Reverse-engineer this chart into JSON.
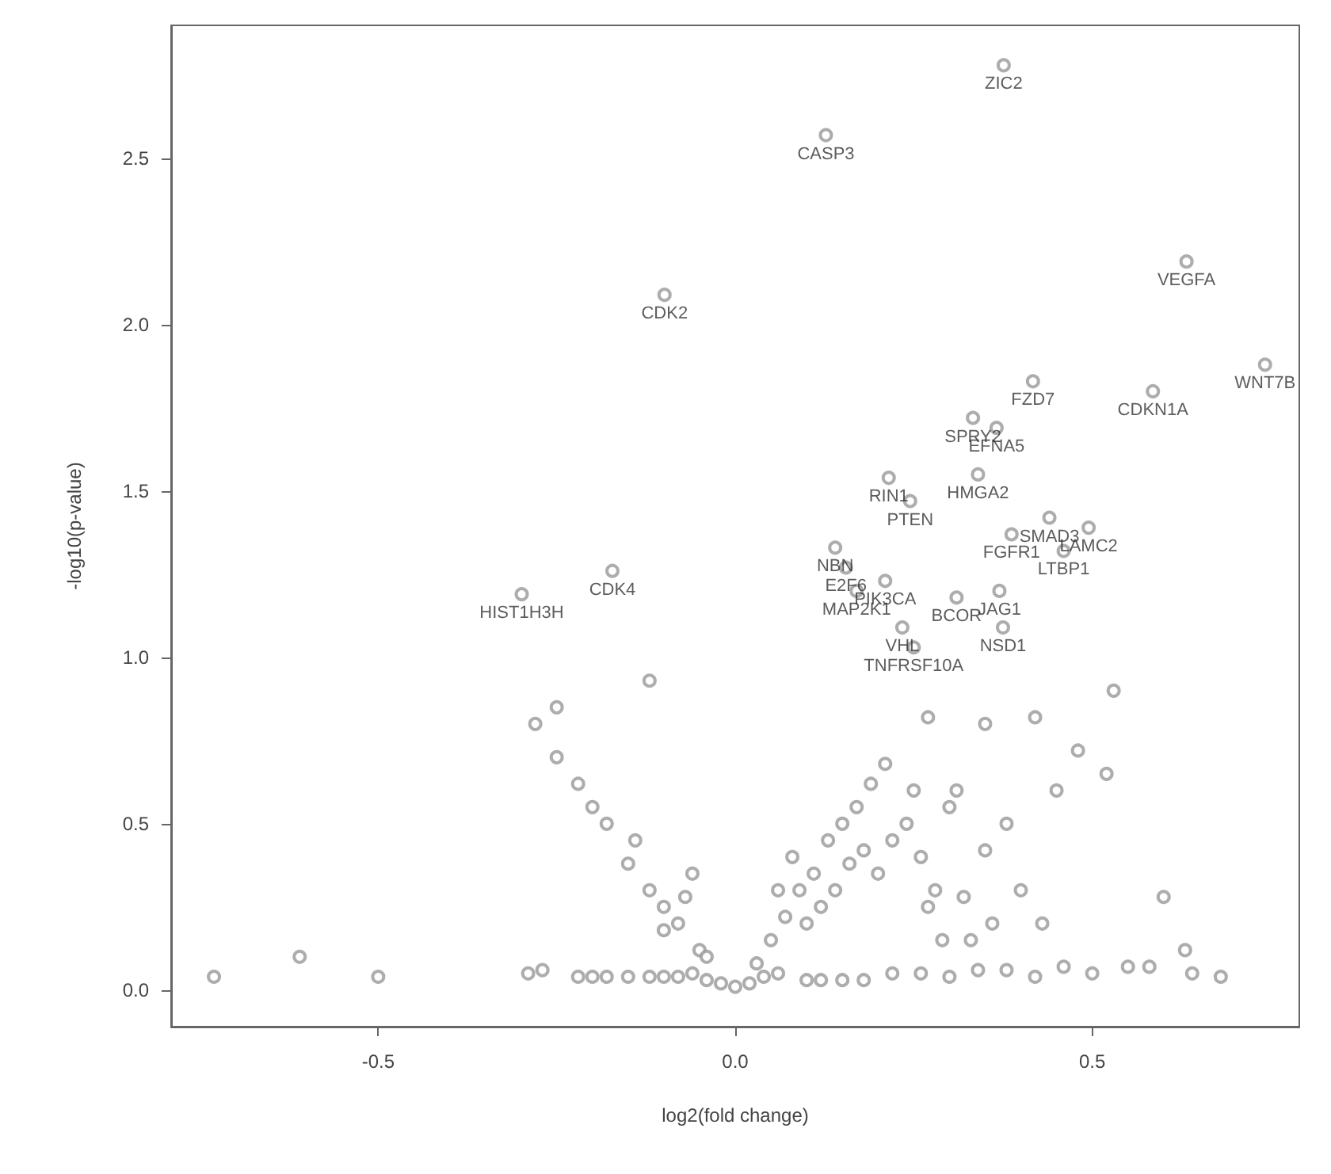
{
  "chart_data": {
    "type": "scatter",
    "xlabel": "log2(fold change)",
    "ylabel": "-log10(p-value)",
    "xlim": [
      -0.79,
      0.79
    ],
    "ylim": [
      -0.11,
      2.9
    ],
    "xticks": [
      {
        "value": -0.5,
        "label": "-0.5"
      },
      {
        "value": 0,
        "label": "0.0"
      },
      {
        "value": 0.5,
        "label": "0.5"
      }
    ],
    "yticks": [
      {
        "value": 0,
        "label": "0.0"
      },
      {
        "value": 0.5,
        "label": "0.5"
      },
      {
        "value": 1,
        "label": "1.0"
      },
      {
        "value": 1.5,
        "label": "1.5"
      },
      {
        "value": 2,
        "label": "2.0"
      },
      {
        "value": 2.5,
        "label": "2.5"
      }
    ],
    "grid": false,
    "marker": "circle",
    "series": [
      {
        "color": "#999999",
        "x": [
          -0.73,
          -0.61,
          -0.5,
          -0.29,
          -0.27,
          -0.22,
          -0.2,
          -0.18,
          -0.15,
          -0.12,
          -0.1,
          -0.08,
          -0.06,
          -0.04,
          -0.02,
          0,
          0.02,
          0.04,
          0.06,
          0.1,
          0.12,
          0.15,
          0.18,
          0.22,
          0.26,
          0.3,
          0.34,
          0.38,
          0.42,
          0.46,
          0.5,
          0.55,
          0.58,
          0.64,
          -0.05,
          -0.08,
          -0.1,
          -0.12,
          -0.15,
          -0.18,
          -0.2,
          -0.22,
          -0.25,
          -0.28,
          -0.14,
          -0.1,
          -0.07,
          -0.04,
          -0.06,
          0.03,
          0.05,
          0.07,
          0.09,
          0.11,
          0.13,
          0.15,
          0.17,
          0.19,
          0.21,
          0.1,
          0.12,
          0.14,
          0.16,
          0.18,
          0.2,
          0.22,
          0.24,
          0.26,
          0.28,
          0.3,
          0.32,
          0.35,
          0.38,
          0.4,
          0.43,
          0.45,
          0.48,
          0.52,
          0.6,
          0.63,
          0.68,
          0.08,
          0.06,
          0.25,
          0.27,
          0.33,
          0.36,
          0.29,
          0.31,
          -0.25,
          -0.12,
          0.27,
          0.35,
          0.42,
          0.53
        ],
        "values": [
          0.04,
          0.1,
          0.04,
          0.05,
          0.06,
          0.04,
          0.04,
          0.04,
          0.04,
          0.04,
          0.04,
          0.04,
          0.05,
          0.03,
          0.02,
          0.01,
          0.02,
          0.04,
          0.05,
          0.03,
          0.03,
          0.03,
          0.03,
          0.05,
          0.05,
          0.04,
          0.06,
          0.06,
          0.04,
          0.07,
          0.05,
          0.07,
          0.07,
          0.05,
          0.12,
          0.2,
          0.25,
          0.3,
          0.38,
          0.5,
          0.55,
          0.62,
          0.7,
          0.8,
          0.45,
          0.18,
          0.28,
          0.1,
          0.35,
          0.08,
          0.15,
          0.22,
          0.3,
          0.35,
          0.45,
          0.5,
          0.55,
          0.62,
          0.68,
          0.2,
          0.25,
          0.3,
          0.38,
          0.42,
          0.35,
          0.45,
          0.5,
          0.4,
          0.3,
          0.55,
          0.28,
          0.42,
          0.5,
          0.3,
          0.2,
          0.6,
          0.72,
          0.65,
          0.28,
          0.12,
          0.04,
          0.4,
          0.3,
          0.6,
          0.25,
          0.15,
          0.2,
          0.15,
          0.6,
          0.85,
          0.93,
          0.82,
          0.8,
          0.82,
          0.9
        ]
      },
      {
        "color": "#999999",
        "x": [
          0.376,
          0.127,
          -0.099,
          0.632,
          0.742,
          0.585,
          0.417,
          0.333,
          0.366,
          0.215,
          0.245,
          0.34,
          0.44,
          0.495,
          0.387,
          0.46,
          0.14,
          0.155,
          0.21,
          -0.172,
          -0.299,
          0.17,
          0.31,
          0.37,
          0.234,
          0.25,
          0.375
        ],
        "values": [
          2.78,
          2.57,
          2.09,
          2.19,
          1.88,
          1.8,
          1.83,
          1.72,
          1.69,
          1.54,
          1.47,
          1.55,
          1.42,
          1.39,
          1.37,
          1.32,
          1.33,
          1.27,
          1.23,
          1.26,
          1.19,
          1.2,
          1.18,
          1.2,
          1.09,
          1.03,
          1.09
        ],
        "value_labels": [
          "ZIC2",
          "CASP3",
          "CDK2",
          "VEGFA",
          "WNT7B",
          "CDKN1A",
          "FZD7",
          "SPRY2",
          "EFNA5",
          "RIN1",
          "PTEN",
          "HMGA2",
          "SMAD3",
          "LAMC2",
          "FGFR1",
          "LTBP1",
          "NBN",
          "E2F6",
          "PIK3CA",
          "CDK4",
          "HIST1H3H",
          "MAP2K1",
          "BCOR",
          "JAG1",
          "VHL",
          "TNFRSF10A",
          "NSD1"
        ]
      }
    ]
  }
}
